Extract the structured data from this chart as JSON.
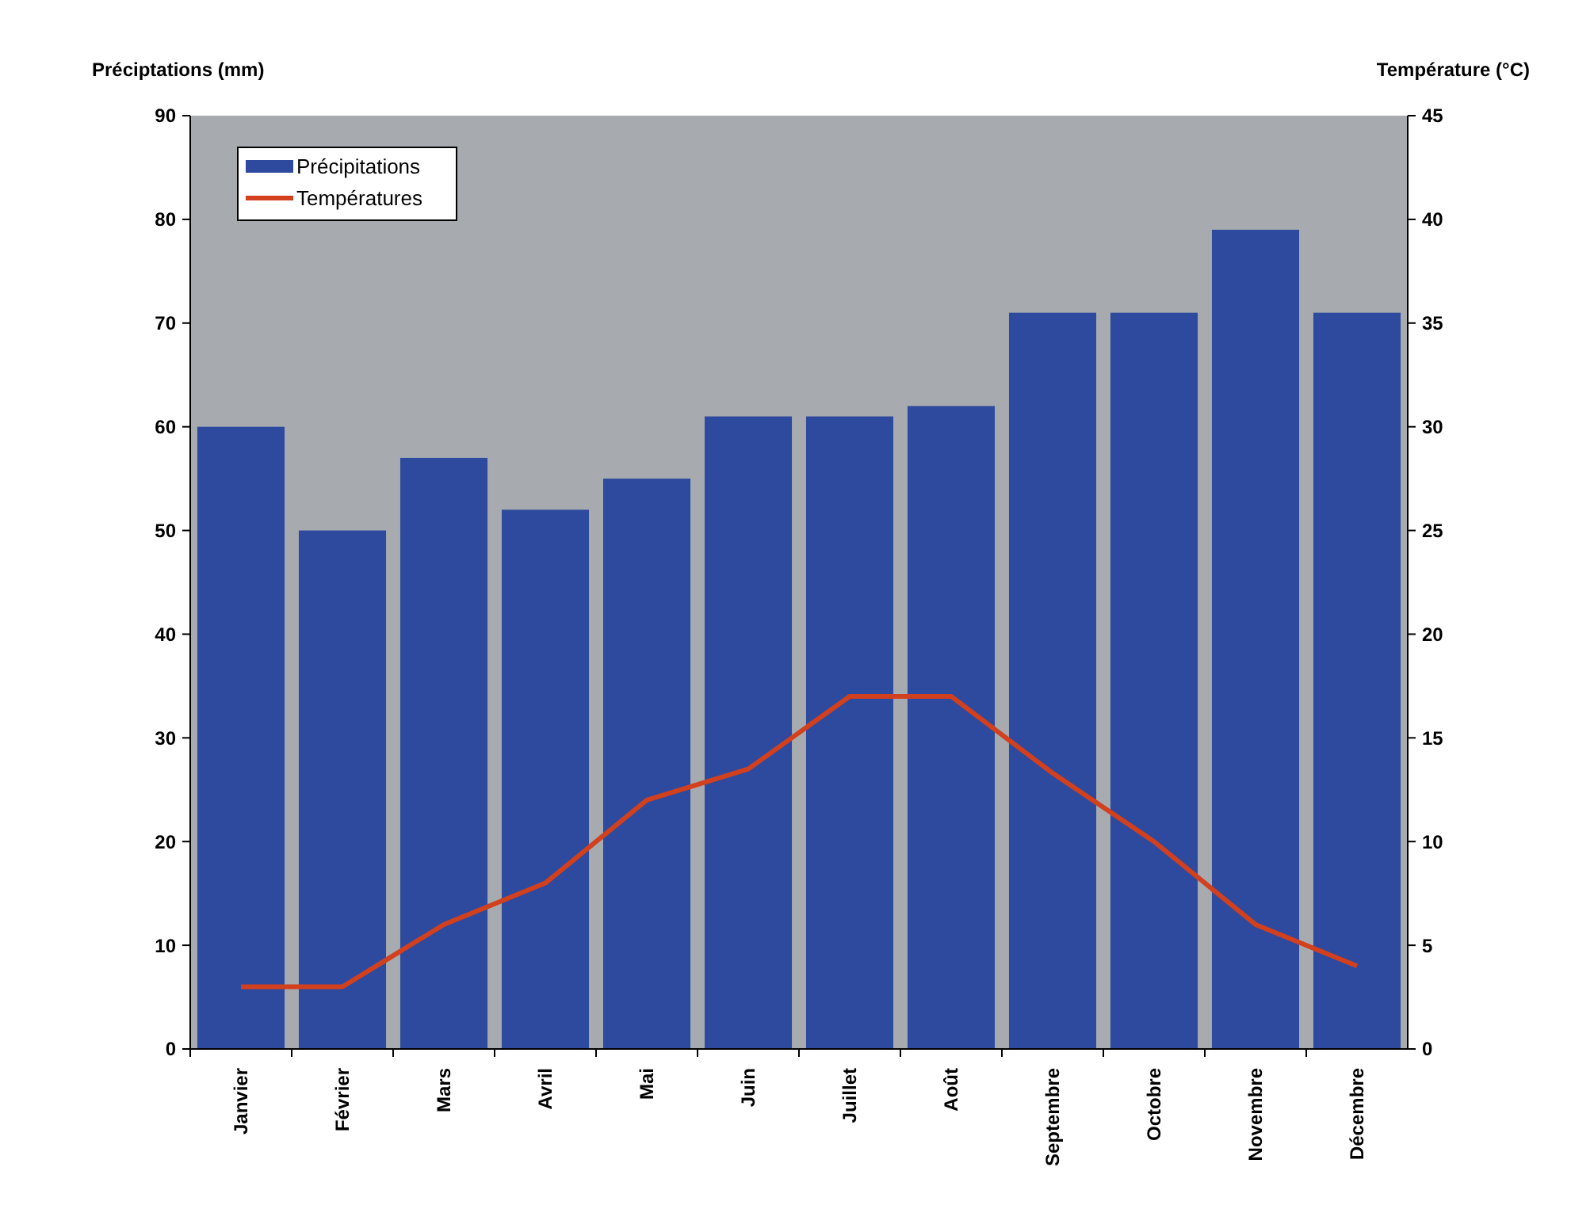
{
  "chart_data": {
    "type": "bar",
    "ylabel": "Préciptations (mm)",
    "y2label": "Température (°C)",
    "categories": [
      "Janvier",
      "Février",
      "Mars",
      "Avril",
      "Mai",
      "Juin",
      "Juillet",
      "Août",
      "Septembre",
      "Octobre",
      "Novembre",
      "Décembre"
    ],
    "series": [
      {
        "name": "Précipitations",
        "color": "#2e4a9e",
        "values": [
          60,
          50,
          57,
          52,
          55,
          61,
          61,
          62,
          71,
          71,
          79,
          71
        ]
      },
      {
        "name": "Températures",
        "type": "line",
        "axis": "y2",
        "color": "#d2401e",
        "values": [
          3,
          3,
          6,
          8,
          12,
          13.5,
          17,
          17,
          13.3,
          10,
          6,
          4
        ]
      }
    ],
    "ylim": [
      0,
      90
    ],
    "yticks": [
      0,
      10,
      20,
      30,
      40,
      50,
      60,
      70,
      80,
      90
    ],
    "y2lim": [
      0,
      45
    ],
    "y2ticks": [
      0,
      5,
      10,
      15,
      20,
      25,
      30,
      35,
      40,
      45
    ],
    "legend": "top left"
  }
}
